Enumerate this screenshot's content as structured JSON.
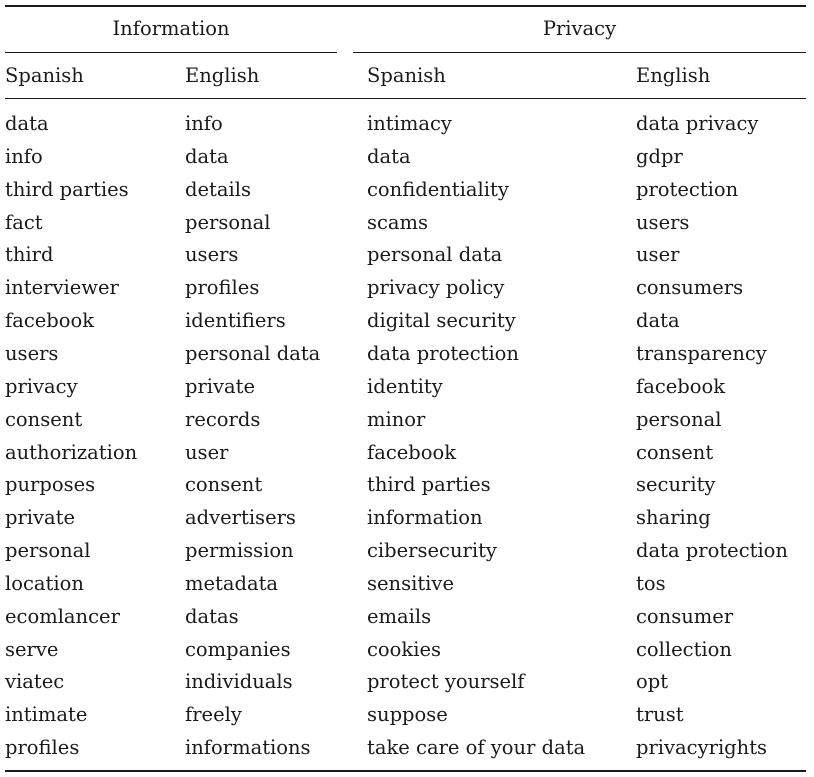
{
  "groups": {
    "information": "Information",
    "privacy": "Privacy"
  },
  "columns": [
    "Spanish",
    "English",
    "Spanish",
    "English"
  ],
  "rows": [
    [
      "data",
      "info",
      "intimacy",
      "data privacy"
    ],
    [
      "info",
      "data",
      "data",
      "gdpr"
    ],
    [
      "third parties",
      "details",
      "confidentiality",
      "protection"
    ],
    [
      "fact",
      "personal",
      "scams",
      "users"
    ],
    [
      "third",
      "users",
      "personal data",
      "user"
    ],
    [
      "interviewer",
      "profiles",
      "privacy policy",
      "consumers"
    ],
    [
      "facebook",
      "identifiers",
      "digital security",
      "data"
    ],
    [
      "users",
      "personal data",
      "data protection",
      "transparency"
    ],
    [
      "privacy",
      "private",
      "identity",
      "facebook"
    ],
    [
      "consent",
      "records",
      "minor",
      "personal"
    ],
    [
      "authorization",
      "user",
      "facebook",
      "consent"
    ],
    [
      "purposes",
      "consent",
      "third parties",
      "security"
    ],
    [
      "private",
      "advertisers",
      "information",
      "sharing"
    ],
    [
      "personal",
      "permission",
      "cibersecurity",
      "data protection"
    ],
    [
      "location",
      "metadata",
      "sensitive",
      "tos"
    ],
    [
      "ecomlancer",
      "datas",
      "emails",
      "consumer"
    ],
    [
      "serve",
      "companies",
      "cookies",
      "collection"
    ],
    [
      "viatec",
      "individuals",
      "protect yourself",
      "opt"
    ],
    [
      "intimate",
      "freely",
      "suppose",
      "trust"
    ],
    [
      "profiles",
      "informations",
      "take care of your data",
      "privacyrights"
    ]
  ]
}
